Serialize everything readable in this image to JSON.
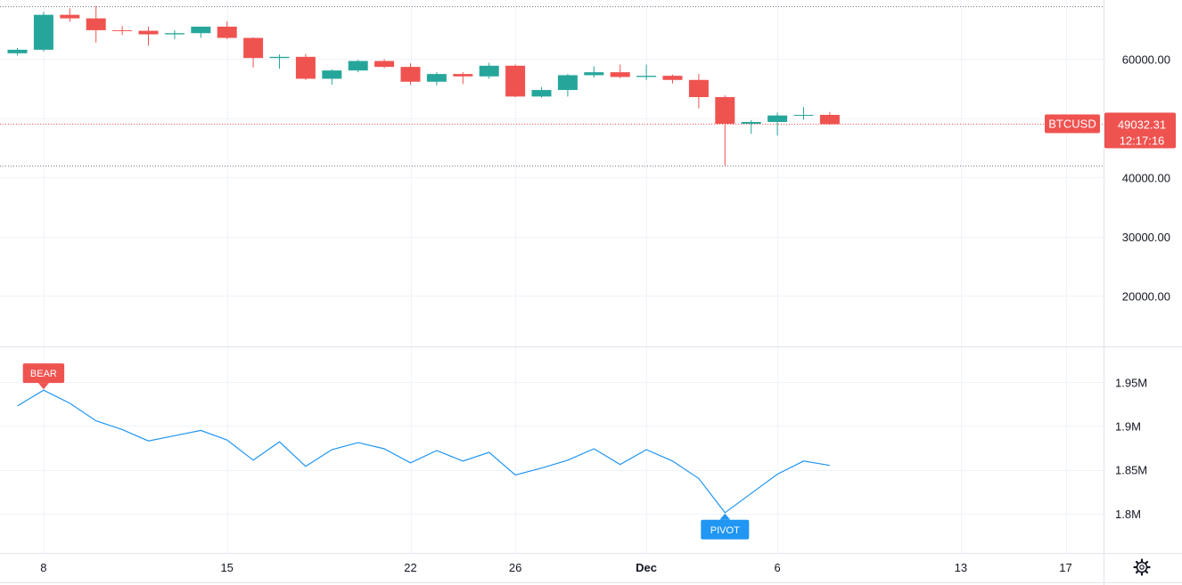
{
  "chart_data": [
    {
      "type": "candlestick",
      "symbol": "BTCUSD",
      "last_price": "49032.31",
      "countdown": "12:17:16",
      "y_ticks": [
        "60000.00",
        "40000.00",
        "30000.00",
        "20000.00"
      ],
      "ylim": [
        11500,
        70000
      ],
      "colors": {
        "up": "#26a69a",
        "down": "#ef5350"
      },
      "x": [
        "Nov 7",
        "Nov 8",
        "Nov 9",
        "Nov 10",
        "Nov 11",
        "Nov 12",
        "Nov 13",
        "Nov 14",
        "Nov 15",
        "Nov 16",
        "Nov 17",
        "Nov 18",
        "Nov 19",
        "Nov 20",
        "Nov 21",
        "Nov 22",
        "Nov 23",
        "Nov 24",
        "Nov 25",
        "Nov 26",
        "Nov 27",
        "Nov 28",
        "Nov 29",
        "Nov 30",
        "Dec 1",
        "Dec 2",
        "Dec 3",
        "Dec 4",
        "Dec 5",
        "Dec 6",
        "Dec 7",
        "Dec 8"
      ],
      "ohlc": [
        [
          61000,
          61900,
          60600,
          61600
        ],
        [
          61600,
          68000,
          61300,
          67500
        ],
        [
          67500,
          68600,
          66300,
          66900
        ],
        [
          66900,
          69000,
          62800,
          64900
        ],
        [
          64900,
          65600,
          64100,
          64800
        ],
        [
          64800,
          65500,
          62300,
          64200
        ],
        [
          64200,
          64900,
          63400,
          64400
        ],
        [
          64400,
          65400,
          63600,
          65500
        ],
        [
          65500,
          66400,
          63400,
          63600
        ],
        [
          63600,
          63700,
          58600,
          60200
        ],
        [
          60200,
          60800,
          58400,
          60400
        ],
        [
          60400,
          60900,
          56500,
          56700
        ],
        [
          56700,
          58300,
          55700,
          58100
        ],
        [
          58100,
          59900,
          57800,
          59700
        ],
        [
          59700,
          60000,
          58500,
          58700
        ],
        [
          58700,
          59300,
          55700,
          56200
        ],
        [
          56200,
          57800,
          55600,
          57500
        ],
        [
          57500,
          57800,
          55800,
          57100
        ],
        [
          57100,
          59400,
          56700,
          58900
        ],
        [
          58900,
          59100,
          53600,
          53700
        ],
        [
          53700,
          55300,
          53500,
          54800
        ],
        [
          54800,
          57500,
          53700,
          57300
        ],
        [
          57300,
          58800,
          56900,
          57800
        ],
        [
          57800,
          59100,
          56800,
          57000
        ],
        [
          57000,
          59100,
          56500,
          57200
        ],
        [
          57200,
          57400,
          55900,
          56500
        ],
        [
          56500,
          57500,
          51700,
          53600
        ],
        [
          53600,
          53900,
          42000,
          49100
        ],
        [
          49100,
          49700,
          47400,
          49400
        ],
        [
          49400,
          51000,
          47100,
          50500
        ],
        [
          50500,
          51900,
          49800,
          50600
        ],
        [
          50600,
          51100,
          48900,
          49032
        ]
      ]
    },
    {
      "type": "line",
      "y_ticks": [
        "1.95M",
        "1.9M",
        "1.85M",
        "1.8M"
      ],
      "ylim": [
        1.755,
        1.99
      ],
      "color": "#2196f3",
      "x": [
        "Nov 7",
        "Nov 8",
        "Nov 9",
        "Nov 10",
        "Nov 11",
        "Nov 12",
        "Nov 13",
        "Nov 14",
        "Nov 15",
        "Nov 16",
        "Nov 17",
        "Nov 18",
        "Nov 19",
        "Nov 20",
        "Nov 21",
        "Nov 22",
        "Nov 23",
        "Nov 24",
        "Nov 25",
        "Nov 26",
        "Nov 27",
        "Nov 28",
        "Nov 29",
        "Nov 30",
        "Dec 1",
        "Dec 2",
        "Dec 3",
        "Dec 4",
        "Dec 5",
        "Dec 6",
        "Dec 7",
        "Dec 8"
      ],
      "values": [
        1.923,
        1.941,
        1.926,
        1.906,
        1.896,
        1.883,
        1.889,
        1.895,
        1.884,
        1.861,
        1.882,
        1.854,
        1.873,
        1.881,
        1.874,
        1.858,
        1.872,
        1.86,
        1.87,
        1.844,
        1.852,
        1.861,
        1.874,
        1.856,
        1.873,
        1.86,
        1.84,
        1.801,
        1.823,
        1.845,
        1.86,
        1.855
      ],
      "annotations": [
        {
          "label": "BEAR",
          "x": "Nov 8",
          "color": "#ef5350"
        },
        {
          "label": "PIVOT",
          "x": "Dec 4",
          "color": "#2196f3"
        }
      ]
    }
  ],
  "time_axis": {
    "labels": [
      {
        "text": "8",
        "x": "Nov 8"
      },
      {
        "text": "15",
        "x": "Nov 15"
      },
      {
        "text": "22",
        "x": "Nov 22"
      },
      {
        "text": "26",
        "x": "Nov 26"
      },
      {
        "text": "Dec",
        "x": "Dec 1",
        "bold": true
      },
      {
        "text": "6",
        "x": "Dec 6"
      },
      {
        "text": "13",
        "x": "Dec 13"
      },
      {
        "text": "17",
        "x": "Dec 17"
      }
    ]
  },
  "settings_icon": "gear-icon"
}
